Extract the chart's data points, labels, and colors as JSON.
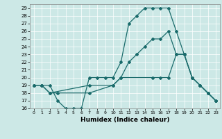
{
  "title": "",
  "xlabel": "Humidex (Indice chaleur)",
  "xlim": [
    -0.5,
    23.5
  ],
  "ylim": [
    16,
    29.5
  ],
  "xticks": [
    0,
    1,
    2,
    3,
    4,
    5,
    6,
    7,
    8,
    9,
    10,
    11,
    12,
    13,
    14,
    15,
    16,
    17,
    18,
    19,
    20,
    21,
    22,
    23
  ],
  "yticks": [
    16,
    17,
    18,
    19,
    20,
    21,
    22,
    23,
    24,
    25,
    26,
    27,
    28,
    29
  ],
  "bg_color": "#cce8e6",
  "line_color": "#1a6b6b",
  "lines": [
    {
      "x": [
        0,
        1,
        2,
        3,
        4,
        5,
        6,
        7,
        8,
        9,
        10,
        11,
        12,
        13,
        14,
        15,
        16,
        17,
        18,
        19,
        20,
        21,
        22,
        23
      ],
      "y": [
        19,
        19,
        19,
        17,
        16,
        16,
        16,
        20,
        20,
        20,
        20,
        22,
        27,
        28,
        29,
        29,
        29,
        29,
        26,
        23,
        20,
        19,
        18,
        17
      ]
    },
    {
      "x": [
        0,
        1,
        2,
        3,
        7,
        10,
        11,
        12,
        13,
        14,
        15,
        16,
        17,
        18,
        19,
        20,
        21,
        22,
        23
      ],
      "y": [
        19,
        19,
        18,
        18,
        18,
        19,
        20,
        22,
        23,
        24,
        25,
        25,
        26,
        23,
        23,
        20,
        19,
        18,
        17
      ]
    },
    {
      "x": [
        0,
        1,
        2,
        7,
        10,
        11,
        15,
        16,
        17,
        18,
        19,
        20,
        21,
        22,
        23
      ],
      "y": [
        19,
        19,
        18,
        19,
        19,
        20,
        20,
        20,
        20,
        23,
        23,
        20,
        19,
        18,
        17
      ]
    }
  ]
}
